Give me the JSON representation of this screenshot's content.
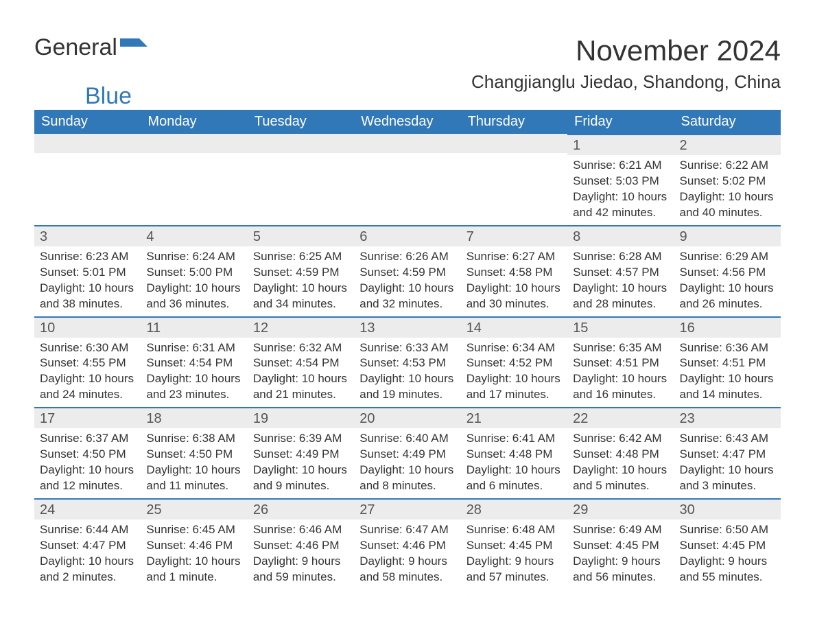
{
  "logo": {
    "part1": "General",
    "part2": "Blue"
  },
  "title": "November 2024",
  "location": "Changjianglu Jiedao, Shandong, China",
  "colors": {
    "header_bg": "#3178b8",
    "header_text": "#ffffff",
    "daybar_bg": "#ececec",
    "daybar_border": "#3178b8",
    "text": "#333333",
    "bg": "#ffffff"
  },
  "typography": {
    "title_fontsize": 42,
    "location_fontsize": 26,
    "header_fontsize": 20,
    "daynum_fontsize": 20,
    "body_fontsize": 17
  },
  "layout": {
    "columns": 7,
    "rows": 5,
    "leading_blanks": 5
  },
  "weekdays": [
    "Sunday",
    "Monday",
    "Tuesday",
    "Wednesday",
    "Thursday",
    "Friday",
    "Saturday"
  ],
  "days": [
    {
      "n": "1",
      "sr": "Sunrise: 6:21 AM",
      "ss": "Sunset: 5:03 PM",
      "dl": "Daylight: 10 hours and 42 minutes."
    },
    {
      "n": "2",
      "sr": "Sunrise: 6:22 AM",
      "ss": "Sunset: 5:02 PM",
      "dl": "Daylight: 10 hours and 40 minutes."
    },
    {
      "n": "3",
      "sr": "Sunrise: 6:23 AM",
      "ss": "Sunset: 5:01 PM",
      "dl": "Daylight: 10 hours and 38 minutes."
    },
    {
      "n": "4",
      "sr": "Sunrise: 6:24 AM",
      "ss": "Sunset: 5:00 PM",
      "dl": "Daylight: 10 hours and 36 minutes."
    },
    {
      "n": "5",
      "sr": "Sunrise: 6:25 AM",
      "ss": "Sunset: 4:59 PM",
      "dl": "Daylight: 10 hours and 34 minutes."
    },
    {
      "n": "6",
      "sr": "Sunrise: 6:26 AM",
      "ss": "Sunset: 4:59 PM",
      "dl": "Daylight: 10 hours and 32 minutes."
    },
    {
      "n": "7",
      "sr": "Sunrise: 6:27 AM",
      "ss": "Sunset: 4:58 PM",
      "dl": "Daylight: 10 hours and 30 minutes."
    },
    {
      "n": "8",
      "sr": "Sunrise: 6:28 AM",
      "ss": "Sunset: 4:57 PM",
      "dl": "Daylight: 10 hours and 28 minutes."
    },
    {
      "n": "9",
      "sr": "Sunrise: 6:29 AM",
      "ss": "Sunset: 4:56 PM",
      "dl": "Daylight: 10 hours and 26 minutes."
    },
    {
      "n": "10",
      "sr": "Sunrise: 6:30 AM",
      "ss": "Sunset: 4:55 PM",
      "dl": "Daylight: 10 hours and 24 minutes."
    },
    {
      "n": "11",
      "sr": "Sunrise: 6:31 AM",
      "ss": "Sunset: 4:54 PM",
      "dl": "Daylight: 10 hours and 23 minutes."
    },
    {
      "n": "12",
      "sr": "Sunrise: 6:32 AM",
      "ss": "Sunset: 4:54 PM",
      "dl": "Daylight: 10 hours and 21 minutes."
    },
    {
      "n": "13",
      "sr": "Sunrise: 6:33 AM",
      "ss": "Sunset: 4:53 PM",
      "dl": "Daylight: 10 hours and 19 minutes."
    },
    {
      "n": "14",
      "sr": "Sunrise: 6:34 AM",
      "ss": "Sunset: 4:52 PM",
      "dl": "Daylight: 10 hours and 17 minutes."
    },
    {
      "n": "15",
      "sr": "Sunrise: 6:35 AM",
      "ss": "Sunset: 4:51 PM",
      "dl": "Daylight: 10 hours and 16 minutes."
    },
    {
      "n": "16",
      "sr": "Sunrise: 6:36 AM",
      "ss": "Sunset: 4:51 PM",
      "dl": "Daylight: 10 hours and 14 minutes."
    },
    {
      "n": "17",
      "sr": "Sunrise: 6:37 AM",
      "ss": "Sunset: 4:50 PM",
      "dl": "Daylight: 10 hours and 12 minutes."
    },
    {
      "n": "18",
      "sr": "Sunrise: 6:38 AM",
      "ss": "Sunset: 4:50 PM",
      "dl": "Daylight: 10 hours and 11 minutes."
    },
    {
      "n": "19",
      "sr": "Sunrise: 6:39 AM",
      "ss": "Sunset: 4:49 PM",
      "dl": "Daylight: 10 hours and 9 minutes."
    },
    {
      "n": "20",
      "sr": "Sunrise: 6:40 AM",
      "ss": "Sunset: 4:49 PM",
      "dl": "Daylight: 10 hours and 8 minutes."
    },
    {
      "n": "21",
      "sr": "Sunrise: 6:41 AM",
      "ss": "Sunset: 4:48 PM",
      "dl": "Daylight: 10 hours and 6 minutes."
    },
    {
      "n": "22",
      "sr": "Sunrise: 6:42 AM",
      "ss": "Sunset: 4:48 PM",
      "dl": "Daylight: 10 hours and 5 minutes."
    },
    {
      "n": "23",
      "sr": "Sunrise: 6:43 AM",
      "ss": "Sunset: 4:47 PM",
      "dl": "Daylight: 10 hours and 3 minutes."
    },
    {
      "n": "24",
      "sr": "Sunrise: 6:44 AM",
      "ss": "Sunset: 4:47 PM",
      "dl": "Daylight: 10 hours and 2 minutes."
    },
    {
      "n": "25",
      "sr": "Sunrise: 6:45 AM",
      "ss": "Sunset: 4:46 PM",
      "dl": "Daylight: 10 hours and 1 minute."
    },
    {
      "n": "26",
      "sr": "Sunrise: 6:46 AM",
      "ss": "Sunset: 4:46 PM",
      "dl": "Daylight: 9 hours and 59 minutes."
    },
    {
      "n": "27",
      "sr": "Sunrise: 6:47 AM",
      "ss": "Sunset: 4:46 PM",
      "dl": "Daylight: 9 hours and 58 minutes."
    },
    {
      "n": "28",
      "sr": "Sunrise: 6:48 AM",
      "ss": "Sunset: 4:45 PM",
      "dl": "Daylight: 9 hours and 57 minutes."
    },
    {
      "n": "29",
      "sr": "Sunrise: 6:49 AM",
      "ss": "Sunset: 4:45 PM",
      "dl": "Daylight: 9 hours and 56 minutes."
    },
    {
      "n": "30",
      "sr": "Sunrise: 6:50 AM",
      "ss": "Sunset: 4:45 PM",
      "dl": "Daylight: 9 hours and 55 minutes."
    }
  ]
}
